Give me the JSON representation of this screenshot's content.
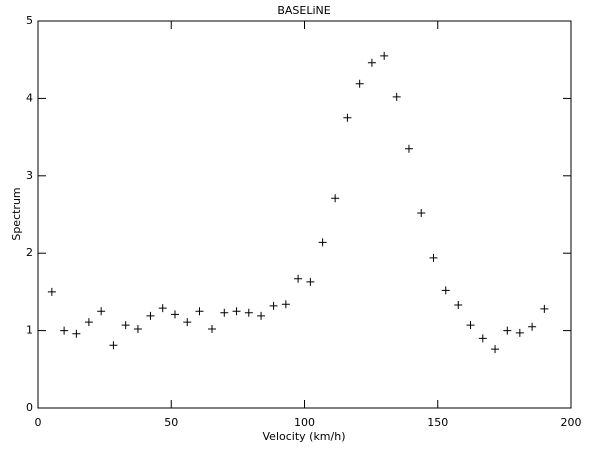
{
  "chart_data": {
    "type": "scatter",
    "title": "BASELiNE",
    "xlabel": "Velocity (km/h)",
    "ylabel": "Spectrum",
    "marker": "plus",
    "color": "#000000",
    "x": [
      5.2,
      9.8,
      14.4,
      19.1,
      23.7,
      28.3,
      32.9,
      37.5,
      42.2,
      46.8,
      51.4,
      56.0,
      60.6,
      65.3,
      69.9,
      74.5,
      79.1,
      83.7,
      88.4,
      93.0,
      97.6,
      102.2,
      106.8,
      111.5,
      116.1,
      120.7,
      125.3,
      129.9,
      134.6,
      139.2,
      143.8,
      148.4,
      153.0,
      157.7,
      162.3,
      166.9,
      171.5,
      176.1,
      180.8,
      185.4,
      190.0
    ],
    "values": [
      1.5,
      1.0,
      0.96,
      1.11,
      1.25,
      0.81,
      1.07,
      1.02,
      1.19,
      1.29,
      1.21,
      1.11,
      1.25,
      1.02,
      1.23,
      1.25,
      1.23,
      1.19,
      1.32,
      1.34,
      1.67,
      1.63,
      2.14,
      2.71,
      3.75,
      4.19,
      4.46,
      4.55,
      4.02,
      3.35,
      2.52,
      1.94,
      1.52,
      1.33,
      1.07,
      0.9,
      0.76,
      1.0,
      0.97,
      1.05,
      1.28
    ],
    "xlim": [
      0,
      200
    ],
    "xticks": [
      0,
      50,
      100,
      150,
      200
    ],
    "ylim": [
      0,
      5
    ],
    "yticks": [
      0,
      1,
      2,
      3,
      4,
      5
    ]
  }
}
